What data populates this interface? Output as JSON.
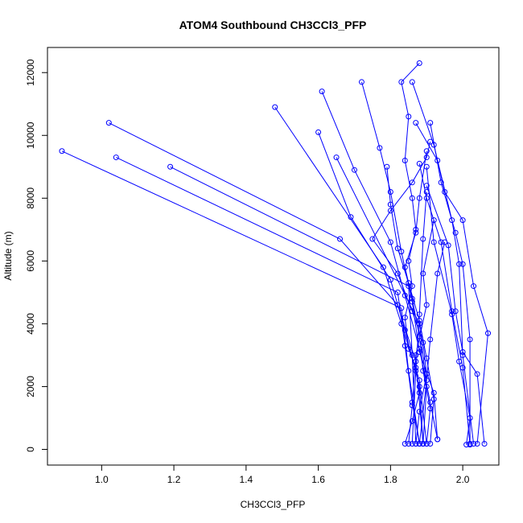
{
  "chart_data": {
    "type": "scatter",
    "title": "ATOM4 Southbound CH3CCl3_PFP",
    "xlabel": "CH3CCl3_PFP",
    "ylabel": "Altitude (m)",
    "xlim": [
      0.85,
      2.1
    ],
    "ylim": [
      -500,
      12800
    ],
    "xticks": [
      1.0,
      1.2,
      1.4,
      1.6,
      1.8,
      2.0
    ],
    "xtick_labels": [
      "1.0",
      "1.2",
      "1.4",
      "1.6",
      "1.8",
      "2.0"
    ],
    "yticks": [
      0,
      2000,
      4000,
      6000,
      8000,
      10000,
      12000
    ],
    "ytick_labels": [
      "0",
      "2000",
      "4000",
      "6000",
      "8000",
      "10000",
      "12000"
    ],
    "grid": false,
    "legend": "none",
    "color": "#0000ff",
    "series": [
      {
        "x": [
          1.84,
          1.86,
          1.88,
          1.87,
          1.85,
          1.84,
          1.86,
          1.85,
          1.87,
          1.86,
          1.84,
          1.85,
          1.83,
          1.88
        ],
        "y": [
          180,
          900,
          1800,
          2600,
          3200,
          4200,
          5200,
          6000,
          7000,
          8000,
          9200,
          10600,
          11700,
          12300
        ]
      },
      {
        "x": [
          1.87,
          1.88,
          1.9,
          1.89,
          1.86,
          1.82,
          1.75,
          1.8,
          1.86,
          1.9,
          1.91
        ],
        "y": [
          180,
          1200,
          2400,
          3400,
          4400,
          5600,
          6700,
          7600,
          8500,
          9300,
          9800
        ]
      },
      {
        "x": [
          1.9,
          1.91,
          1.89,
          1.88,
          1.86,
          1.84,
          1.87,
          1.88,
          1.9
        ],
        "y": [
          180,
          1300,
          2500,
          3600,
          4800,
          5800,
          6900,
          8000,
          9500
        ]
      },
      {
        "x": [
          1.91,
          1.92,
          1.9,
          1.88,
          1.85,
          1.82,
          1.8,
          1.79
        ],
        "y": [
          180,
          1600,
          2900,
          4100,
          5300,
          6400,
          7800,
          9000
        ]
      },
      {
        "x": [
          1.93,
          1.92,
          1.88,
          1.86,
          1.83,
          1.8,
          1.77,
          1.72
        ],
        "y": [
          320,
          1800,
          3100,
          4700,
          6300,
          8200,
          9600,
          11700
        ]
      },
      {
        "x": [
          1.93,
          1.91,
          1.88,
          1.84,
          1.8,
          1.7,
          1.61
        ],
        "y": [
          320,
          1500,
          3200,
          4900,
          6600,
          8900,
          11400
        ]
      },
      {
        "x": [
          1.89,
          1.88,
          1.84,
          1.8,
          1.69,
          1.6
        ],
        "y": [
          180,
          2000,
          3800,
          5400,
          7400,
          10100
        ]
      },
      {
        "x": [
          1.9,
          1.88,
          1.83,
          1.78,
          1.48
        ],
        "y": [
          180,
          2200,
          4000,
          5800,
          10900
        ]
      },
      {
        "x": [
          1.89,
          1.87,
          1.82,
          1.66,
          1.02
        ],
        "y": [
          180,
          2800,
          4600,
          6700,
          10400
        ]
      },
      {
        "x": [
          1.88,
          1.86,
          1.84,
          1.82,
          1.04
        ],
        "y": [
          180,
          1500,
          3300,
          5000,
          9300
        ]
      },
      {
        "x": [
          1.88,
          1.85,
          1.83,
          0.89
        ],
        "y": [
          180,
          2500,
          4500,
          9500
        ]
      },
      {
        "x": [
          1.87,
          1.86,
          1.85,
          1.19
        ],
        "y": [
          180,
          3000,
          5200,
          9000
        ]
      },
      {
        "x": [
          1.89,
          1.9,
          1.88,
          1.65
        ],
        "y": [
          180,
          2000,
          4000,
          9300
        ]
      },
      {
        "x": [
          2.01,
          2.02,
          1.99,
          1.97,
          1.92,
          1.9
        ],
        "y": [
          150,
          1000,
          2800,
          4300,
          6600,
          9000
        ]
      },
      {
        "x": [
          2.02,
          2.02,
          2.0,
          1.98,
          1.94,
          1.91
        ],
        "y": [
          180,
          3500,
          5900,
          6900,
          8500,
          10400
        ]
      },
      {
        "x": [
          2.03,
          2.0,
          1.99,
          1.97,
          1.92,
          1.86
        ],
        "y": [
          180,
          3000,
          5900,
          7300,
          9700,
          11700
        ]
      },
      {
        "x": [
          2.04,
          2.07,
          2.03,
          2.0,
          1.95,
          1.93,
          1.87
        ],
        "y": [
          180,
          3700,
          5200,
          7300,
          8200,
          9200,
          10400
        ]
      },
      {
        "x": [
          2.06,
          2.04,
          2.0,
          1.98,
          1.96,
          1.9
        ],
        "y": [
          180,
          2400,
          3100,
          4400,
          6500,
          8400
        ]
      },
      {
        "x": [
          2.02,
          2.0,
          1.97,
          1.94,
          1.9,
          1.88
        ],
        "y": [
          150,
          2600,
          4400,
          6600,
          8000,
          9100
        ]
      },
      {
        "x": [
          1.85,
          1.86,
          1.87,
          1.9,
          1.89,
          1.92
        ],
        "y": [
          180,
          1400,
          3000,
          4600,
          5600,
          7300
        ]
      },
      {
        "x": [
          1.86,
          1.87,
          1.88,
          1.89,
          1.9
        ],
        "y": [
          180,
          2500,
          4300,
          6700,
          8200
        ]
      },
      {
        "x": [
          1.88,
          1.9,
          1.91,
          1.93,
          1.95
        ],
        "y": [
          180,
          2200,
          3500,
          5600,
          6600
        ]
      }
    ]
  }
}
